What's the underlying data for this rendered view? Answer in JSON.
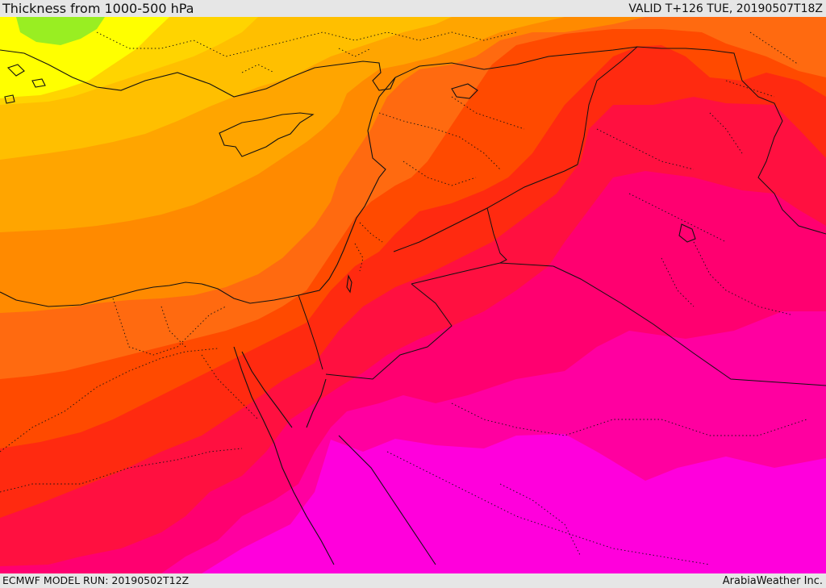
{
  "header": {
    "title": "Thickness from 1000-500 hPa",
    "valid": "VALID T+126 TUE, 20190507T18Z"
  },
  "footer": {
    "model_run": "ECMWF MODEL RUN: 20190502T12Z",
    "credit": "ArabiaWeather Inc."
  },
  "map": {
    "region": "Eastern Mediterranean, Levant, Iraq, northern Saudi Arabia and Egypt",
    "colors": {
      "lime": "#99ee22",
      "yellow": "#ffff00",
      "yellow_light": "#ffef00",
      "yellow_orange": "#ffd400",
      "gold": "#ffbf00",
      "orange_light": "#ffa500",
      "orange": "#ff8a00",
      "orange_dark": "#ff6a10",
      "orange_red": "#ff4a00",
      "red_orange": "#ff2a10",
      "red": "#ff1040",
      "crimson": "#ff0070",
      "pink": "#ff00a0",
      "magenta": "#ff00dc",
      "border_color": "#111111"
    }
  }
}
